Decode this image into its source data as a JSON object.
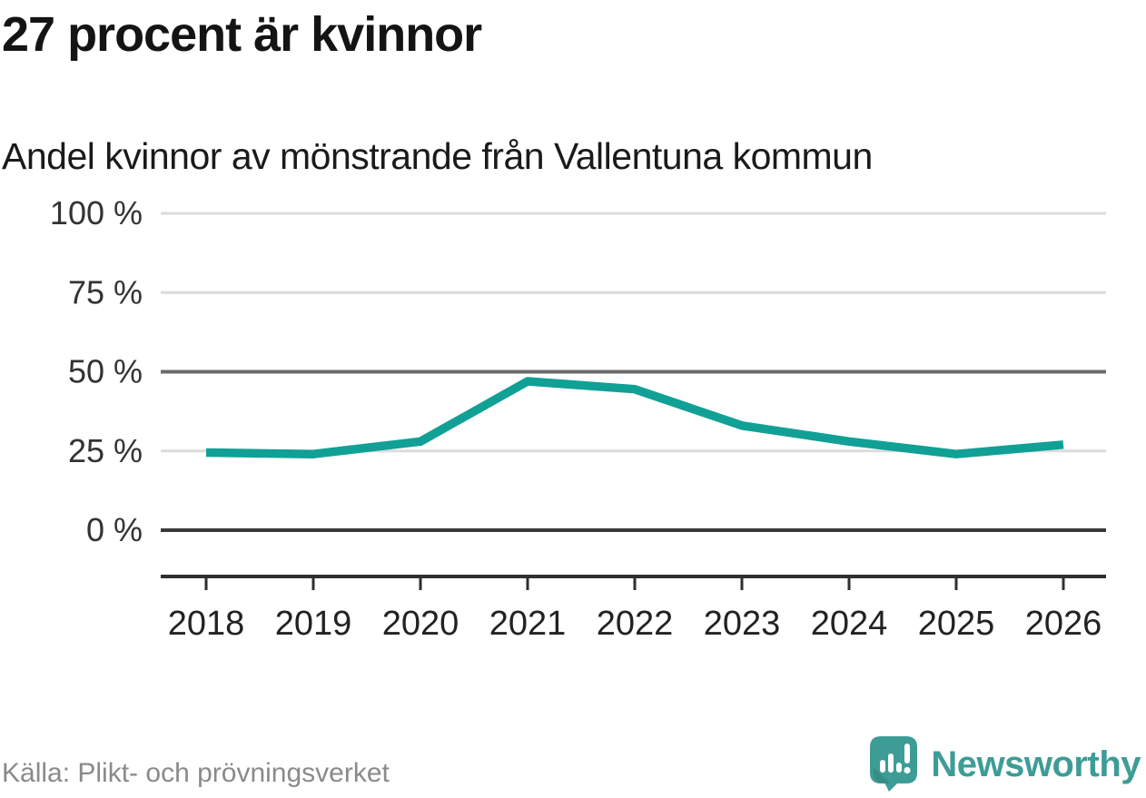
{
  "header": {
    "title": "27 procent är kvinnor",
    "subtitle": "Andel kvinnor av mönstrande från Vallentuna kommun"
  },
  "chart_data": {
    "type": "line",
    "title": "27 procent är kvinnor",
    "subtitle": "Andel kvinnor av mönstrande från Vallentuna kommun",
    "x": [
      "2018",
      "2019",
      "2020",
      "2021",
      "2022",
      "2023",
      "2024",
      "2025",
      "2026"
    ],
    "series": [
      {
        "name": "Andel kvinnor av mönstrande",
        "color": "#10a096",
        "values": [
          24.5,
          24,
          28,
          47,
          44.5,
          33,
          28,
          24,
          27
        ]
      }
    ],
    "ylim": [
      0,
      100
    ],
    "yticks": [
      0,
      25,
      50,
      75,
      100
    ],
    "ytick_labels": [
      "0 %",
      "25 %",
      "50 %",
      "75 %",
      "100 %"
    ],
    "emphasized_yticks": [
      0,
      50
    ],
    "grid": "horizontal",
    "legend": "none",
    "xlabel": "",
    "ylabel": ""
  },
  "footer": {
    "source": "Källa: Plikt- och prövningsverket",
    "brand": "Newsworthy"
  },
  "colors": {
    "line": "#10a096",
    "brand_teal": "#3d9c96",
    "grid_light": "#dcdcdc",
    "grid_emphasis": "#6b6b6b",
    "grid_baseline": "#3a3a3a",
    "axis": "#2f2f2f",
    "title_text": "#141414",
    "tick_text": "#333333",
    "xtick_text": "#222222",
    "muted_text": "#8a8a8a",
    "background": "#ffffff"
  }
}
